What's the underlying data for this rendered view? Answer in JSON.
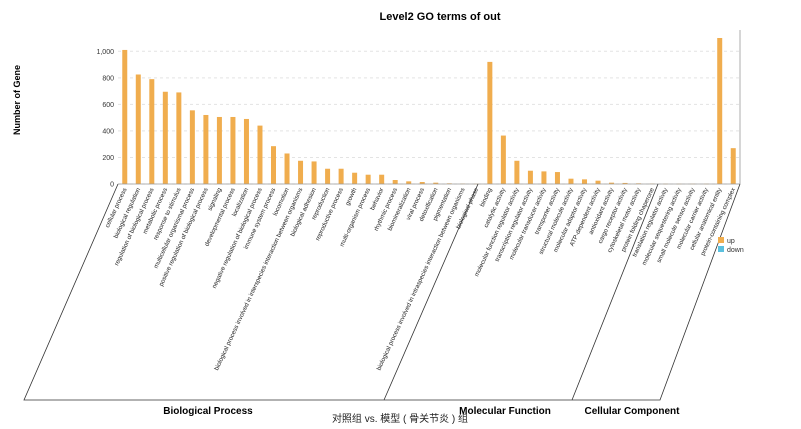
{
  "chart_data": {
    "type": "bar",
    "title": "Level2 GO terms of out",
    "ylabel": "Number of Gene",
    "xlabel": "对照组 vs. 模型 ( 骨关节炎 ) 组",
    "ylim": [
      0,
      1100
    ],
    "yticks": [
      "0",
      "200",
      "400",
      "600",
      "800",
      "1,000"
    ],
    "grid": true,
    "legend_position": "right",
    "series": [
      {
        "name": "up",
        "color": "#f0ad4e"
      },
      {
        "name": "down",
        "color": "#5bc0de"
      }
    ],
    "groups": [
      {
        "name": "Biological Process",
        "categories": [
          "cellular process",
          "biological regulation",
          "regulation of biological process",
          "metabolic process",
          "response to stimulus",
          "multicellular organismal process",
          "positive regulation of biological process",
          "signaling",
          "developmental process",
          "localization",
          "negative regulation of biological process",
          "immune system process",
          "locomotion",
          "biological process involved in interspecies interaction between organisms",
          "biological adhesion",
          "reproduction",
          "reproductive process",
          "growth",
          "multi-organism process",
          "behavior",
          "rhythmic process",
          "biomineralization",
          "viral process",
          "detoxification",
          "pigmentation",
          "biological process involved in intraspecies interaction between organisms",
          "biological phase"
        ]
      },
      {
        "name": "Molecular Function",
        "categories": [
          "binding",
          "catalytic activity",
          "molecular function regulator activity",
          "transcription regulator activity",
          "molecular transducer activity",
          "transporter activity",
          "structural molecule activity",
          "molecular adaptor activity",
          "ATP-dependent activity",
          "antioxidant activity",
          "cargo receptor activity",
          "cytoskeletal motor activity",
          "protein folding chaperone",
          "translation regulator activity",
          "molecular sequestering activity"
        ]
      },
      {
        "name": "Cellular Component",
        "categories": [
          "small molecule sensor activity",
          "molecular carrier activity",
          "cellular anatomical entity",
          "protein-containing complex"
        ]
      }
    ],
    "categories": [
      "cellular process",
      "biological regulation",
      "regulation of biological process",
      "metabolic process",
      "response to stimulus",
      "multicellular organismal process",
      "positive regulation of biological process",
      "signaling",
      "developmental process",
      "localization",
      "negative regulation of biological process",
      "immune system process",
      "locomotion",
      "biological process involved in interspecies interaction between organisms",
      "biological adhesion",
      "reproduction",
      "reproductive process",
      "growth",
      "multi-organism process",
      "behavior",
      "rhythmic process",
      "biomineralization",
      "viral process",
      "detoxification",
      "pigmentation",
      "biological process involved in intraspecies interaction between organisms",
      "biological phase",
      "binding",
      "catalytic activity",
      "molecular function regulator activity",
      "transcription regulator activity",
      "molecular transducer activity",
      "transporter activity",
      "structural molecule activity",
      "molecular adaptor activity",
      "ATP-dependent activity",
      "antioxidant activity",
      "cargo receptor activity",
      "cytoskeletal motor activity",
      "protein folding chaperone",
      "translation regulator activity",
      "molecular sequestering activity",
      "small molecule sensor activity",
      "molecular carrier activity",
      "cellular anatomical entity",
      "protein-containing complex"
    ],
    "values": [
      1010,
      825,
      790,
      695,
      690,
      555,
      520,
      505,
      505,
      490,
      440,
      285,
      230,
      175,
      170,
      115,
      115,
      85,
      70,
      70,
      30,
      20,
      15,
      10,
      5,
      3,
      2,
      920,
      365,
      175,
      100,
      95,
      90,
      40,
      35,
      25,
      10,
      8,
      5,
      3,
      2,
      2,
      2,
      2,
      1100,
      270
    ]
  }
}
